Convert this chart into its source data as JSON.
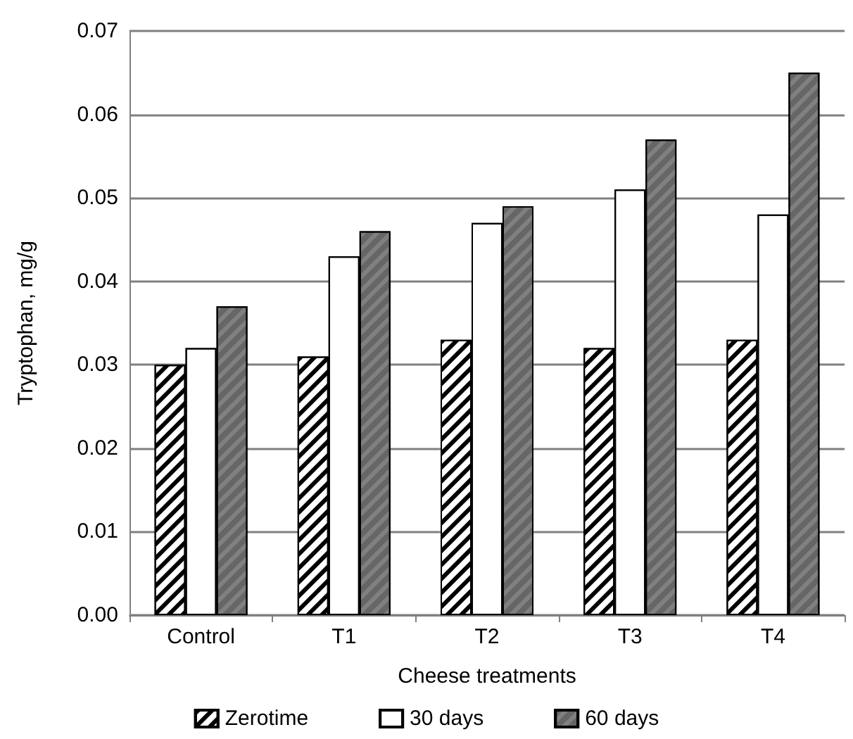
{
  "chart_data": {
    "type": "bar",
    "xlabel": "Cheese treatments",
    "ylabel": "Tryptophan, mg/g",
    "categories": [
      "Control",
      "T1",
      "T2",
      "T3",
      "T4"
    ],
    "series": [
      {
        "name": "Zerotime",
        "color": "#ffffff",
        "values": [
          0.03,
          0.031,
          0.033,
          0.032,
          0.033
        ]
      },
      {
        "name": "30 days",
        "color": "#ffffff",
        "values": [
          0.032,
          0.043,
          0.047,
          0.051,
          0.048
        ]
      },
      {
        "name": "60 days",
        "color": "#808080",
        "values": [
          0.037,
          0.046,
          0.049,
          0.057,
          0.065
        ]
      }
    ],
    "ylim": [
      0,
      0.07
    ],
    "yticks": [
      {
        "value": 0,
        "label": "0.00"
      },
      0.01,
      0.02,
      0.03,
      0.04,
      0.05,
      0.06,
      0.07
    ],
    "grid": "y",
    "legend": "bottom"
  }
}
